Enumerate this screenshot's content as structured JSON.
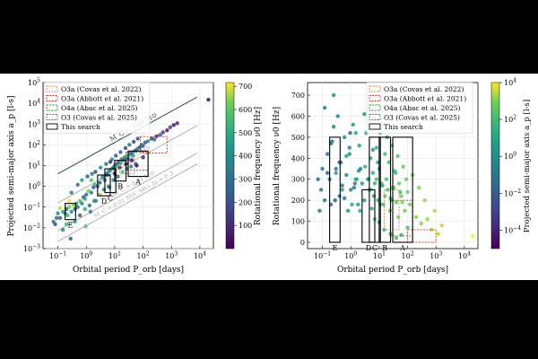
{
  "chart_data": [
    {
      "type": "scatter",
      "xlabel": "Orbital period P_orb [days]",
      "ylabel": "Projected semi-major axis a_p [l-s]",
      "xscale": "log",
      "yscale": "log",
      "xlim": [
        0.03,
        30000
      ],
      "ylim": [
        0.001,
        100000
      ],
      "xticks": [
        {
          "v": 0.1,
          "base": "10",
          "exp": "−1"
        },
        {
          "v": 1,
          "base": "10",
          "exp": "0"
        },
        {
          "v": 10,
          "base": "10",
          "exp": "1"
        },
        {
          "v": 100,
          "base": "10",
          "exp": "2"
        },
        {
          "v": 1000,
          "base": "10",
          "exp": "3"
        },
        {
          "v": 10000,
          "base": "10",
          "exp": "4"
        }
      ],
      "yticks": [
        {
          "v": 0.001,
          "base": "10",
          "exp": "−3"
        },
        {
          "v": 0.01,
          "base": "10",
          "exp": "−2"
        },
        {
          "v": 0.1,
          "base": "10",
          "exp": "−1"
        },
        {
          "v": 1,
          "base": "10",
          "exp": "0"
        },
        {
          "v": 10,
          "base": "10",
          "exp": "1"
        },
        {
          "v": 100,
          "base": "10",
          "exp": "2"
        },
        {
          "v": 1000,
          "base": "10",
          "exp": "3"
        },
        {
          "v": 10000,
          "base": "10",
          "exp": "4"
        },
        {
          "v": 100000,
          "base": "10",
          "exp": "5"
        }
      ],
      "grid": true,
      "legend": {
        "position": "top-left",
        "entries": [
          {
            "label": "O3a (Covas et al. 2022)",
            "color": "#d9883a",
            "style": "dashed"
          },
          {
            "label": "O3a (Abbott et al. 2021)",
            "color": "#c0392b",
            "style": "dashed"
          },
          {
            "label": "O4a (Abac et al. 2025)",
            "color": "#2e8b2e",
            "style": "dashed"
          },
          {
            "label": "O3 (Covas et al. 2025)",
            "color": "#a0522d",
            "style": "dashed"
          },
          {
            "label": "This search",
            "color": "#000000",
            "style": "solid"
          }
        ]
      },
      "mass_lines": [
        {
          "label": "M_C = 100 M⊙",
          "color": "#2f4f4f",
          "points": [
            [
              0.1,
              4
            ],
            [
              8000,
              20000
            ]
          ]
        },
        {
          "label": "M_C = 1 M⊙",
          "color": "#b0b0b0",
          "points": [
            [
              0.1,
              0.16
            ],
            [
              8000,
              830
            ]
          ]
        },
        {
          "label": "M_C = 0.01 M⊙",
          "color": "#b0b0b0",
          "points": [
            [
              0.1,
              0.0075
            ],
            [
              8000,
              40
            ]
          ]
        },
        {
          "label": "M_C = 0.01 M⊙, sin i_bi = 0.3",
          "color": "#b0b0b0",
          "points": [
            [
              0.1,
              0.0022
            ],
            [
              8000,
              12
            ]
          ]
        }
      ],
      "search_boxes": [
        {
          "label": "A",
          "x": [
            30,
            150
          ],
          "y": [
            3,
            50
          ]
        },
        {
          "label": "B",
          "x": [
            10,
            25
          ],
          "y": [
            1.8,
            18
          ]
        },
        {
          "label": "C",
          "x": [
            4.5,
            11
          ],
          "y": [
            0.5,
            7
          ]
        },
        {
          "label": "D",
          "x": [
            2.5,
            7
          ],
          "y": [
            0.35,
            3.5
          ]
        },
        {
          "label": "E",
          "x": [
            0.18,
            0.42
          ],
          "y": [
            0.025,
            0.15
          ]
        }
      ],
      "prior_boxes": [
        {
          "label": "O3a (Covas et al. 2022)",
          "x": [
            15,
            50
          ],
          "y": [
            4,
            25
          ]
        },
        {
          "label": "O3a (Abbott et al. 2021)",
          "x": [
            80,
            700
          ],
          "y": [
            40,
            250
          ]
        },
        {
          "label": "O3 (Covas et al. 2025)",
          "x": [
            25,
            150
          ],
          "y": [
            6,
            45
          ]
        }
      ],
      "colorbar": {
        "label": "Rotational frequency ν0 [Hz]",
        "scale": "linear",
        "range": [
          0,
          716
        ],
        "ticks": [
          "100",
          "200",
          "300",
          "400",
          "500",
          "600",
          "700"
        ],
        "colormap": "viridis"
      }
    },
    {
      "type": "scatter",
      "xlabel": "Orbital period P_orb [days]",
      "ylabel": "Rotational frequency ν0 [Hz]",
      "xscale": "log",
      "yscale": "linear",
      "xlim": [
        0.03,
        30000
      ],
      "ylim": [
        -30,
        760
      ],
      "xticks": [
        {
          "v": 0.1,
          "base": "10",
          "exp": "−1"
        },
        {
          "v": 1,
          "base": "10",
          "exp": "0"
        },
        {
          "v": 10,
          "base": "10",
          "exp": "1"
        },
        {
          "v": 100,
          "base": "10",
          "exp": "2"
        },
        {
          "v": 1000,
          "base": "10",
          "exp": "3"
        },
        {
          "v": 10000,
          "base": "10",
          "exp": "4"
        }
      ],
      "yticks": [
        {
          "v": 0,
          "label": "0"
        },
        {
          "v": 100,
          "label": "100"
        },
        {
          "v": 200,
          "label": "200"
        },
        {
          "v": 300,
          "label": "300"
        },
        {
          "v": 400,
          "label": "400"
        },
        {
          "v": 500,
          "label": "500"
        },
        {
          "v": 600,
          "label": "600"
        },
        {
          "v": 700,
          "label": "700"
        }
      ],
      "grid": true,
      "legend": {
        "position": "top-right",
        "entries": [
          {
            "label": "O3a (Covas et al. 2022)",
            "color": "#d9883a",
            "style": "dashed"
          },
          {
            "label": "O3a (Abbott et al. 2021)",
            "color": "#c0392b",
            "style": "dashed"
          },
          {
            "label": "O4a (Abac et al. 2025)",
            "color": "#2e8b2e",
            "style": "dashed"
          },
          {
            "label": "O3 (Covas et al. 2025)",
            "color": "#a0522d",
            "style": "dashed"
          },
          {
            "label": "This search",
            "color": "#000000",
            "style": "solid"
          }
        ]
      },
      "search_boxes": [
        {
          "label": "A",
          "x": [
            30,
            150
          ],
          "y": [
            0,
            500
          ]
        },
        {
          "label": "B",
          "x": [
            10,
            25
          ],
          "y": [
            0,
            500
          ]
        },
        {
          "label": "C",
          "x": [
            4.5,
            11
          ],
          "y": [
            0,
            500
          ]
        },
        {
          "label": "D",
          "x": [
            2.5,
            7
          ],
          "y": [
            0,
            250
          ]
        },
        {
          "label": "E",
          "x": [
            0.18,
            0.42
          ],
          "y": [
            0,
            500
          ]
        }
      ],
      "prior_boxes": [
        {
          "label": "O3a (Covas et al. 2022)",
          "x": [
            15,
            50
          ],
          "y": [
            60,
            250
          ]
        },
        {
          "label": "O3a (Abbott et al. 2021)",
          "x": [
            100,
            1000
          ],
          "y": [
            0,
            60
          ]
        },
        {
          "label": "O3 (Covas et al. 2025)",
          "x": [
            25,
            150
          ],
          "y": [
            30,
            200
          ]
        }
      ],
      "colorbar": {
        "label": "Projected semi-major axis a_p [l-s]",
        "scale": "log",
        "range": [
          1e-05,
          10000
        ],
        "ticks": [
          {
            "v": 0.0001,
            "base": "10",
            "exp": "−4"
          },
          {
            "v": 0.01,
            "base": "10",
            "exp": "−2"
          },
          {
            "v": 1,
            "base": "10",
            "exp": "0"
          },
          {
            "v": 100,
            "base": "10",
            "exp": "2"
          },
          {
            "v": 10000,
            "base": "10",
            "exp": "4"
          }
        ],
        "colormap": "viridis"
      }
    }
  ],
  "pulsars": [
    [
      0.07,
      0.02,
      300
    ],
    [
      0.08,
      0.015,
      150
    ],
    [
      0.09,
      0.03,
      250
    ],
    [
      0.1,
      0.05,
      350
    ],
    [
      0.12,
      0.03,
      200
    ],
    [
      0.15,
      0.06,
      420
    ],
    [
      0.18,
      0.05,
      300
    ],
    [
      0.2,
      0.08,
      180
    ],
    [
      0.22,
      0.04,
      480
    ],
    [
      0.25,
      0.1,
      550
    ],
    [
      0.3,
      0.06,
      350
    ],
    [
      0.35,
      0.12,
      600
    ],
    [
      0.4,
      0.08,
      220
    ],
    [
      0.45,
      0.15,
      380
    ],
    [
      0.5,
      0.1,
      270
    ],
    [
      0.6,
      0.2,
      500
    ],
    [
      0.7,
      0.15,
      320
    ],
    [
      0.8,
      0.3,
      150
    ],
    [
      0.9,
      0.25,
      420
    ],
    [
      1,
      0.4,
      250
    ],
    [
      1.2,
      0.6,
      560
    ],
    [
      1.5,
      0.5,
      300
    ],
    [
      1.8,
      0.9,
      180
    ],
    [
      2,
      1.2,
      460
    ],
    [
      2.5,
      1.0,
      280
    ],
    [
      0.3,
      0.5,
      330
    ],
    [
      0.5,
      1.2,
      250
    ],
    [
      0.7,
      2.0,
      410
    ],
    [
      1.1,
      3.0,
      180
    ],
    [
      1.6,
      4.0,
      300
    ],
    [
      0.4,
      0.02,
      380
    ],
    [
      0.6,
      0.04,
      210
    ],
    [
      0.9,
      0.08,
      450
    ],
    [
      1.3,
      0.12,
      260
    ],
    [
      1.9,
      0.2,
      340
    ],
    [
      3,
      1.5,
      200
    ],
    [
      3.5,
      2.5,
      520
    ],
    [
      4,
      3.0,
      300
    ],
    [
      4.5,
      2.0,
      250
    ],
    [
      5,
      4.0,
      400
    ],
    [
      5.5,
      3.5,
      160
    ],
    [
      6,
      5.0,
      330
    ],
    [
      7,
      6.0,
      280
    ],
    [
      8,
      7.0,
      450
    ],
    [
      9,
      8.0,
      200
    ],
    [
      10,
      10.0,
      350
    ],
    [
      11,
      9.0,
      520
    ],
    [
      12,
      12.0,
      280
    ],
    [
      14,
      15.0,
      180
    ],
    [
      16,
      13.0,
      420
    ],
    [
      18,
      20.0,
      300
    ],
    [
      20,
      18.0,
      250
    ],
    [
      22,
      25.0,
      380
    ],
    [
      25,
      22.0,
      210
    ],
    [
      28,
      30.0,
      460
    ],
    [
      30,
      20.0,
      260
    ],
    [
      35,
      35.0,
      340
    ],
    [
      40,
      40.0,
      190
    ],
    [
      45,
      30.0,
      410
    ],
    [
      50,
      50.0,
      280
    ],
    [
      60,
      60.0,
      220
    ],
    [
      70,
      70.0,
      360
    ],
    [
      80,
      80.0,
      150
    ],
    [
      90,
      100.0,
      300
    ],
    [
      100,
      90.0,
      240
    ],
    [
      120,
      130.0,
      180
    ],
    [
      150,
      150.0,
      320
    ],
    [
      200,
      200.0,
      120
    ],
    [
      250,
      180.0,
      260
    ],
    [
      300,
      260.0,
      90
    ],
    [
      400,
      300.0,
      200
    ],
    [
      500,
      400.0,
      110
    ],
    [
      700,
      500.0,
      60
    ],
    [
      900,
      700.0,
      150
    ],
    [
      1200,
      900.0,
      40
    ],
    [
      1600,
      1100.0,
      80
    ],
    [
      20000,
      15000.0,
      30
    ],
    [
      6,
      1.0,
      440
    ],
    [
      9,
      2.0,
      380
    ],
    [
      13,
      3.0,
      270
    ],
    [
      19,
      5.0,
      500
    ],
    [
      27,
      7.0,
      200
    ],
    [
      38,
      9.0,
      330
    ],
    [
      55,
      12.0,
      240
    ],
    [
      3,
      0.4,
      610
    ],
    [
      4.2,
      0.7,
      300
    ],
    [
      6.5,
      0.9,
      220
    ],
    [
      2.2,
      0.2,
      350
    ],
    [
      1.4,
      0.06,
      280
    ],
    [
      0.95,
      0.012,
      520
    ],
    [
      0.28,
      0.003,
      200
    ],
    [
      0.15,
      0.008,
      330
    ],
    [
      0.2,
      0.015,
      470
    ],
    [
      11,
      30.0,
      180
    ],
    [
      16,
      45.0,
      220
    ],
    [
      24,
      70.0,
      150
    ],
    [
      33,
      100.0,
      260
    ],
    [
      47,
      140.0,
      120
    ],
    [
      65,
      200.0,
      190
    ],
    [
      8,
      20.0,
      300
    ],
    [
      5,
      12.0,
      250
    ],
    [
      3.2,
      8.0,
      360
    ],
    [
      2.1,
      5.0,
      150
    ],
    [
      1.5,
      2.0,
      520
    ],
    [
      0.25,
      0.2,
      700
    ],
    [
      0.12,
      0.09,
      640
    ],
    [
      15,
      8.0,
      60
    ],
    [
      25,
      12.0,
      40
    ],
    [
      40,
      18.0,
      20
    ],
    [
      60,
      10.0,
      35
    ],
    [
      100,
      25.0,
      70
    ],
    [
      7,
      15.0,
      110
    ],
    [
      10,
      4.0,
      95
    ]
  ]
}
